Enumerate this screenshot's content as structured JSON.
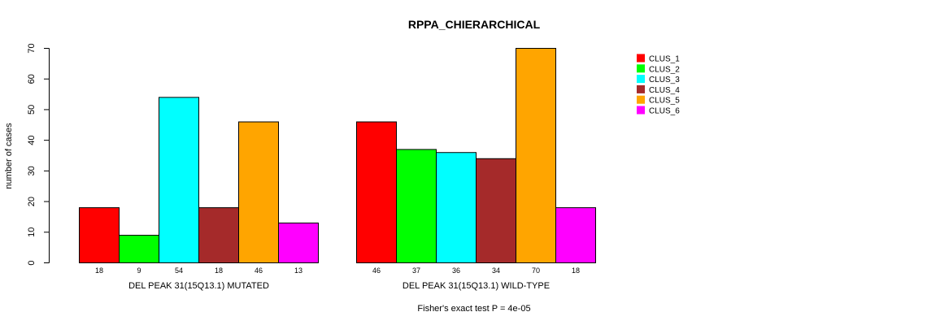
{
  "chart_data": {
    "type": "bar",
    "title": "RPPA_CHIERARCHICAL",
    "ylabel": "number of cases",
    "ylim": [
      0,
      70
    ],
    "yticks": [
      0,
      10,
      20,
      30,
      40,
      50,
      60,
      70
    ],
    "footnote": "Fisher's exact test P = 4e-05",
    "groups": [
      {
        "label": "DEL PEAK 31(15Q13.1) MUTATED",
        "values": [
          18,
          9,
          54,
          18,
          46,
          13
        ],
        "counts": [
          "18",
          "9",
          "54",
          "18",
          "46",
          "13"
        ]
      },
      {
        "label": "DEL PEAK 31(15Q13.1) WILD-TYPE",
        "values": [
          46,
          37,
          36,
          34,
          70,
          18
        ],
        "counts": [
          "46",
          "37",
          "36",
          "34",
          "70",
          "18"
        ]
      }
    ],
    "series": [
      {
        "name": "CLUS_1",
        "color": "#ff0000"
      },
      {
        "name": "CLUS_2",
        "color": "#00ff00"
      },
      {
        "name": "CLUS_3",
        "color": "#00ffff"
      },
      {
        "name": "CLUS_4",
        "color": "#a52a2a"
      },
      {
        "name": "CLUS_5",
        "color": "#ffa500"
      },
      {
        "name": "CLUS_6",
        "color": "#ff00ff"
      }
    ],
    "legend_position": "top-right"
  }
}
